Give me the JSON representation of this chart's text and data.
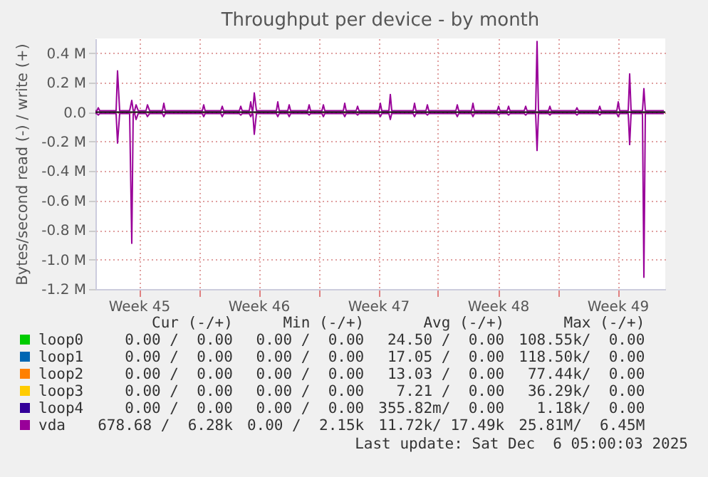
{
  "chart_data": {
    "type": "line",
    "title": "Throughput per device - by month",
    "ylabel": "Bytes/second read (-) / write (+)",
    "x": [
      "2025-11-02T23:00",
      "2025-11-03T01:00",
      "2025-11-03T03:00",
      "2025-11-03T05:00",
      "2025-11-04T04:00",
      "2025-11-04T06:00",
      "2025-11-04T09:00",
      "2025-11-04T23:00",
      "2025-11-05T02:00",
      "2025-11-05T04:00",
      "2025-11-05T06:00",
      "2025-11-05T08:00",
      "2025-11-05T11:00",
      "2025-11-05T22:00",
      "2025-11-06T00:00",
      "2025-11-06T03:00",
      "2025-11-06T21:00",
      "2025-11-06T23:00",
      "2025-11-07T01:00",
      "2025-11-09T05:00",
      "2025-11-09T07:00",
      "2025-11-09T09:00",
      "2025-11-10T07:00",
      "2025-11-10T09:00",
      "2025-11-10T11:00",
      "2025-11-11T09:00",
      "2025-11-11T11:00",
      "2025-11-11T13:00",
      "2025-11-11T23:00",
      "2025-11-12T01:00",
      "2025-11-12T03:00",
      "2025-11-12T04:00",
      "2025-11-12T06:00",
      "2025-11-12T09:00",
      "2025-11-13T13:00",
      "2025-11-13T15:00",
      "2025-11-13T17:00",
      "2025-11-14T05:00",
      "2025-11-14T07:00",
      "2025-11-14T09:00",
      "2025-11-15T09:00",
      "2025-11-15T11:00",
      "2025-11-15T13:00",
      "2025-11-16T05:00",
      "2025-11-16T07:00",
      "2025-11-16T09:00",
      "2025-11-17T11:00",
      "2025-11-17T13:00",
      "2025-11-17T15:00",
      "2025-11-18T05:00",
      "2025-11-18T07:00",
      "2025-11-18T09:00",
      "2025-11-19T13:00",
      "2025-11-19T15:00",
      "2025-11-19T17:00",
      "2025-11-20T03:00",
      "2025-11-20T05:00",
      "2025-11-20T07:00",
      "2025-11-21T13:00",
      "2025-11-21T15:00",
      "2025-11-21T17:00",
      "2025-11-22T07:00",
      "2025-11-22T09:00",
      "2025-11-22T11:00",
      "2025-11-24T01:00",
      "2025-11-24T03:00",
      "2025-11-24T05:00",
      "2025-11-24T23:00",
      "2025-11-25T01:00",
      "2025-11-25T03:00",
      "2025-11-26T11:00",
      "2025-11-26T13:00",
      "2025-11-26T15:00",
      "2025-11-27T01:00",
      "2025-11-27T03:00",
      "2025-11-27T05:00",
      "2025-11-28T01:00",
      "2025-11-28T03:00",
      "2025-11-28T05:00",
      "2025-11-28T17:00",
      "2025-11-28T19:00",
      "2025-11-28T21:00",
      "2025-11-29T11:00",
      "2025-11-29T13:00",
      "2025-11-29T15:00",
      "2025-12-01T01:00",
      "2025-12-01T03:00",
      "2025-12-01T05:00",
      "2025-12-02T09:00",
      "2025-12-02T11:00",
      "2025-12-02T13:00",
      "2025-12-03T11:00",
      "2025-12-03T13:00",
      "2025-12-03T15:00",
      "2025-12-04T03:00",
      "2025-12-04T05:00",
      "2025-12-04T07:00",
      "2025-12-04T23:00",
      "2025-12-05T01:00",
      "2025-12-05T03:00",
      "2025-12-06T05:00"
    ],
    "series": [
      {
        "name": "loop0",
        "color": "#00cc00",
        "values": [
          null,
          null,
          null,
          null,
          null,
          null,
          null,
          null,
          null,
          null,
          null,
          null,
          null,
          null,
          null,
          null,
          null,
          null,
          null,
          null,
          null,
          null,
          null,
          null,
          null,
          null,
          null,
          null,
          null,
          null,
          null,
          null,
          null,
          null,
          null,
          null,
          null,
          null,
          null,
          null,
          null,
          null,
          null,
          null,
          null,
          null,
          null,
          null,
          null,
          null,
          null,
          null,
          null,
          null,
          null,
          null,
          null,
          null,
          null,
          null,
          null,
          null,
          null,
          null,
          null,
          null,
          null,
          null,
          null,
          null,
          null,
          null,
          null,
          null,
          null,
          null,
          null,
          null,
          null,
          null,
          null,
          null,
          null,
          null,
          null,
          null,
          null,
          null,
          null,
          null,
          null,
          null,
          null,
          null,
          null,
          null,
          null,
          null,
          null,
          null,
          null
        ]
      },
      {
        "name": "loop1",
        "color": "#0066b3",
        "values": [
          null,
          null,
          null,
          null,
          null,
          null,
          null,
          null,
          null,
          null,
          null,
          null,
          null,
          null,
          null,
          null,
          null,
          null,
          null,
          null,
          null,
          null,
          null,
          null,
          null,
          null,
          null,
          null,
          null,
          null,
          null,
          null,
          null,
          null,
          null,
          null,
          null,
          null,
          null,
          null,
          null,
          null,
          null,
          null,
          null,
          null,
          null,
          null,
          null,
          null,
          null,
          null,
          null,
          null,
          null,
          null,
          null,
          null,
          null,
          null,
          null,
          null,
          null,
          null,
          null,
          null,
          null,
          null,
          null,
          null,
          null,
          null,
          null,
          null,
          null,
          null,
          null,
          null,
          null,
          null,
          null,
          null,
          null,
          null,
          null,
          null,
          null,
          null,
          null,
          null,
          null,
          null,
          null,
          null,
          null,
          null,
          null,
          null,
          null,
          null,
          null
        ]
      },
      {
        "name": "loop2",
        "color": "#ff8000",
        "values": [
          null,
          null,
          null,
          null,
          null,
          null,
          null,
          null,
          null,
          null,
          null,
          null,
          null,
          null,
          null,
          null,
          null,
          null,
          null,
          null,
          null,
          null,
          null,
          null,
          null,
          null,
          null,
          null,
          null,
          null,
          null,
          null,
          null,
          null,
          null,
          null,
          null,
          null,
          null,
          null,
          null,
          null,
          null,
          null,
          null,
          null,
          null,
          null,
          null,
          null,
          null,
          null,
          null,
          null,
          null,
          null,
          null,
          null,
          null,
          null,
          null,
          null,
          null,
          null,
          null,
          null,
          null,
          null,
          null,
          null,
          null,
          null,
          null,
          null,
          null,
          null,
          null,
          null,
          null,
          null,
          null,
          null,
          null,
          null,
          null,
          null,
          null,
          null,
          null,
          null,
          null,
          null,
          null,
          null,
          null,
          null,
          null,
          null,
          null,
          null,
          null
        ]
      },
      {
        "name": "loop3",
        "color": "#ffcc00",
        "values": [
          null,
          null,
          null,
          null,
          null,
          null,
          null,
          null,
          null,
          null,
          null,
          null,
          null,
          null,
          null,
          null,
          null,
          null,
          null,
          null,
          null,
          null,
          null,
          null,
          null,
          null,
          null,
          null,
          null,
          null,
          null,
          null,
          null,
          null,
          null,
          null,
          null,
          null,
          null,
          null,
          null,
          null,
          null,
          null,
          null,
          null,
          null,
          null,
          null,
          null,
          null,
          null,
          null,
          null,
          null,
          null,
          null,
          null,
          null,
          null,
          null,
          null,
          null,
          null,
          null,
          null,
          null,
          null,
          null,
          null,
          null,
          null,
          null,
          null,
          null,
          null,
          null,
          null,
          null,
          null,
          null,
          null,
          null,
          null,
          null,
          null,
          null,
          null,
          null,
          null,
          null,
          null,
          null,
          null,
          null,
          null,
          null,
          null,
          null,
          null,
          null
        ]
      },
      {
        "name": "loop4",
        "color": "#330099",
        "values": [
          null,
          null,
          null,
          null,
          null,
          null,
          null,
          null,
          null,
          null,
          null,
          null,
          null,
          null,
          null,
          null,
          null,
          null,
          null,
          null,
          null,
          null,
          null,
          null,
          null,
          null,
          null,
          null,
          null,
          null,
          null,
          null,
          null,
          null,
          null,
          null,
          null,
          null,
          null,
          null,
          null,
          null,
          null,
          null,
          null,
          null,
          null,
          null,
          null,
          null,
          null,
          null,
          null,
          null,
          null,
          null,
          null,
          null,
          null,
          null,
          null,
          null,
          null,
          null,
          null,
          null,
          null,
          null,
          null,
          null,
          null,
          null,
          null,
          null,
          null,
          null,
          null,
          null,
          null,
          null,
          null,
          null,
          null,
          null,
          null,
          null,
          null,
          null,
          null,
          null,
          null,
          null,
          null,
          null,
          null,
          null,
          null,
          null,
          null,
          null,
          null
        ]
      },
      {
        "name": "vda",
        "color": "#990099",
        "values": [
          0.01,
          0.01,
          0.03,
          0.01,
          0.01,
          0.28,
          0.01,
          0.01,
          0.08,
          0.01,
          0.01,
          0.05,
          0.01,
          0.01,
          0.05,
          0.01,
          0.01,
          0.06,
          0.01,
          0.01,
          0.05,
          0.01,
          0.01,
          0.04,
          0.01,
          0.01,
          0.04,
          0.01,
          0.01,
          0.07,
          0.01,
          0.01,
          0.13,
          0.01,
          0.01,
          0.07,
          0.01,
          0.01,
          0.05,
          0.01,
          0.01,
          0.05,
          0.01,
          0.01,
          0.05,
          0.01,
          0.01,
          0.06,
          0.01,
          0.01,
          0.04,
          0.01,
          0.01,
          0.06,
          0.01,
          0.01,
          0.12,
          0.01,
          0.01,
          0.06,
          0.01,
          0.01,
          0.05,
          0.01,
          0.01,
          0.05,
          0.01,
          0.01,
          0.06,
          0.01,
          0.01,
          0.04,
          0.01,
          0.01,
          0.04,
          0.01,
          0.01,
          0.04,
          0.01,
          0.01,
          0.48,
          0.01,
          0.01,
          0.04,
          0.01,
          0.01,
          0.03,
          0.01,
          0.01,
          0.04,
          0.01,
          0.01,
          0.07,
          0.01,
          0.01,
          0.26,
          0.01,
          0.01,
          0.16,
          0.01,
          0.01
        ]
      },
      {
        "color": "#990099",
        "values": [
          -0.01,
          -0.01,
          -0.02,
          -0.01,
          -0.01,
          -0.21,
          -0.01,
          -0.01,
          -0.89,
          -0.01,
          -0.01,
          -0.05,
          -0.01,
          -0.01,
          -0.03,
          -0.01,
          -0.01,
          -0.03,
          -0.01,
          -0.01,
          -0.03,
          -0.01,
          -0.01,
          -0.03,
          -0.01,
          -0.01,
          -0.02,
          -0.01,
          -0.01,
          -0.03,
          -0.01,
          -0.01,
          -0.15,
          -0.01,
          -0.01,
          -0.03,
          -0.01,
          -0.01,
          -0.03,
          -0.01,
          -0.01,
          -0.02,
          -0.01,
          -0.01,
          -0.03,
          -0.01,
          -0.01,
          -0.03,
          -0.01,
          -0.01,
          -0.02,
          -0.01,
          -0.01,
          -0.03,
          -0.01,
          -0.01,
          -0.05,
          -0.01,
          -0.01,
          -0.03,
          -0.01,
          -0.01,
          -0.02,
          -0.01,
          -0.01,
          -0.03,
          -0.01,
          -0.01,
          -0.03,
          -0.01,
          -0.01,
          -0.02,
          -0.01,
          -0.01,
          -0.02,
          -0.01,
          -0.01,
          -0.02,
          -0.01,
          -0.01,
          -0.26,
          -0.01,
          -0.01,
          -0.02,
          -0.01,
          -0.01,
          -0.02,
          -0.01,
          -0.01,
          -0.02,
          -0.01,
          -0.01,
          -0.03,
          -0.01,
          -0.01,
          -0.22,
          -0.01,
          -0.01,
          -1.12,
          -0.01,
          -0.01
        ]
      }
    ],
    "xlim": [
      "2025-11-02T23:00",
      "2025-12-06T07:00"
    ],
    "xticks": [
      {
        "value": "2025-11-05T12:00",
        "label": "Week 45"
      },
      {
        "value": "2025-11-09",
        "label": null
      },
      {
        "value": "2025-11-12T12:00",
        "label": "Week 46"
      },
      {
        "value": "2025-11-16",
        "label": null
      },
      {
        "value": "2025-11-19T12:00",
        "label": "Week 47"
      },
      {
        "value": "2025-11-23",
        "label": null
      },
      {
        "value": "2025-11-26T12:00",
        "label": "Week 48"
      },
      {
        "value": "2025-11-30",
        "label": null
      },
      {
        "value": "2025-12-03T12:00",
        "label": "Week 49"
      }
    ],
    "ylim": [
      -1.2,
      0.5
    ],
    "yticks": [
      {
        "value": -1.2,
        "label": "-1.2 M"
      },
      {
        "value": -1.0,
        "label": "-1.0 M"
      },
      {
        "value": -0.8,
        "label": "-0.8 M"
      },
      {
        "value": -0.6,
        "label": "-0.6 M"
      },
      {
        "value": -0.4,
        "label": "-0.4 M"
      },
      {
        "value": -0.2,
        "label": "-0.2 M"
      },
      {
        "value": 0,
        "label": "0.0"
      },
      {
        "value": 0.2,
        "label": "0.2 M"
      },
      {
        "value": 0.4,
        "label": "0.4 M"
      }
    ],
    "ref_lines": [
      {
        "axis": "y",
        "value": 0,
        "color": "#000000"
      }
    ],
    "grid": true,
    "legend": "bottom",
    "line_style": "solid",
    "annotations": [
      "Cur (-/+)",
      "Min (-/+)",
      "Avg (-/+)",
      "Max (-/+)",
      "0.00 /  0.00",
      "0.00 /  0.00",
      "24.50 /  0.00",
      "108.55k/  0.00",
      "0.00 /  0.00",
      "0.00 /  0.00",
      "17.05 /  0.00",
      "118.50k/  0.00",
      "0.00 /  0.00",
      "0.00 /  0.00",
      "13.03 /  0.00",
      "77.44k/  0.00",
      "0.00 /  0.00",
      "0.00 /  0.00",
      "7.21 /  0.00",
      "36.29k/  0.00",
      "0.00 /  0.00",
      "0.00 /  0.00",
      "355.82m/  0.00",
      "1.18k/  0.00",
      "678.68 /  6.28k",
      "0.00 /  2.15k",
      "11.72k/ 17.49k",
      "25.81M/  6.45M",
      "Last update: Sat Dec  6 05:00:03 2025"
    ]
  }
}
